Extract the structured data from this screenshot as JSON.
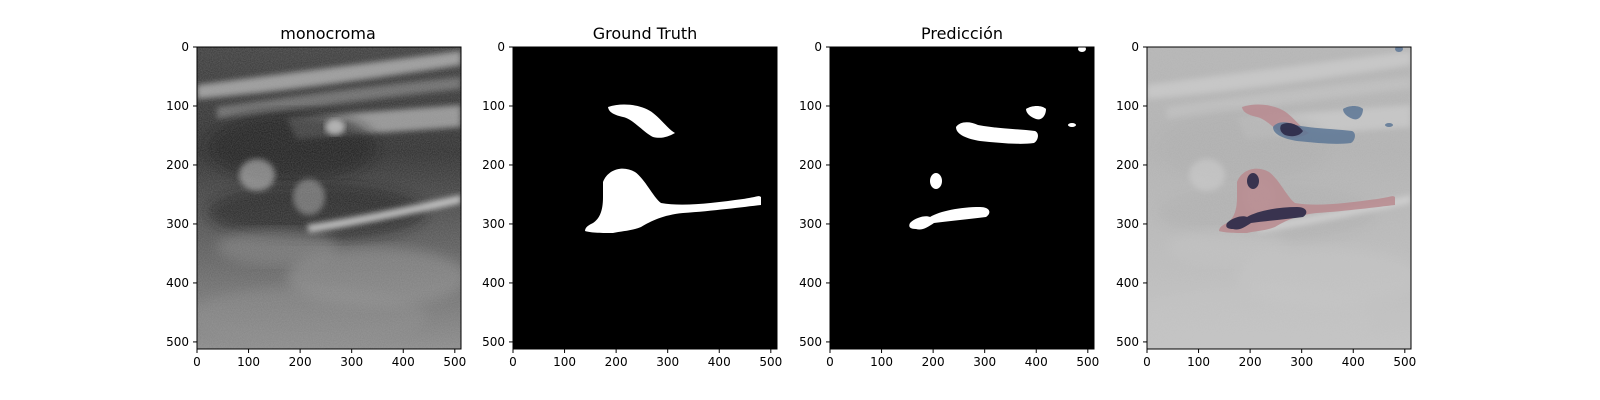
{
  "figure": {
    "panels": [
      {
        "id": "monocroma",
        "title": "monocroma",
        "image_kind": "ultrasound-grayscale",
        "x_ticks": [
          "0",
          "100",
          "200",
          "300",
          "400",
          "500"
        ],
        "y_ticks": [
          "0",
          "100",
          "200",
          "300",
          "400",
          "500"
        ]
      },
      {
        "id": "ground-truth",
        "title": "Ground Truth",
        "image_kind": "binary-mask",
        "x_ticks": [
          "0",
          "100",
          "200",
          "300",
          "400",
          "500"
        ],
        "y_ticks": [
          "0",
          "100",
          "200",
          "300",
          "400",
          "500"
        ]
      },
      {
        "id": "prediccion",
        "title": "Predicción",
        "image_kind": "binary-mask",
        "x_ticks": [
          "0",
          "100",
          "200",
          "300",
          "400",
          "500"
        ],
        "y_ticks": [
          "0",
          "100",
          "200",
          "300",
          "400",
          "500"
        ]
      },
      {
        "id": "overlay",
        "title": "",
        "image_kind": "overlay",
        "x_ticks": [
          "0",
          "100",
          "200",
          "300",
          "400",
          "500"
        ],
        "y_ticks": [
          "0",
          "100",
          "200",
          "300",
          "400",
          "500"
        ]
      }
    ],
    "colors": {
      "mask_foreground": "#ffffff",
      "mask_background": "#000000",
      "ground_truth_overlay": "#b98a8f",
      "prediction_overlay": "#5d7796",
      "intersection_overlay": "#2c2a48"
    }
  }
}
